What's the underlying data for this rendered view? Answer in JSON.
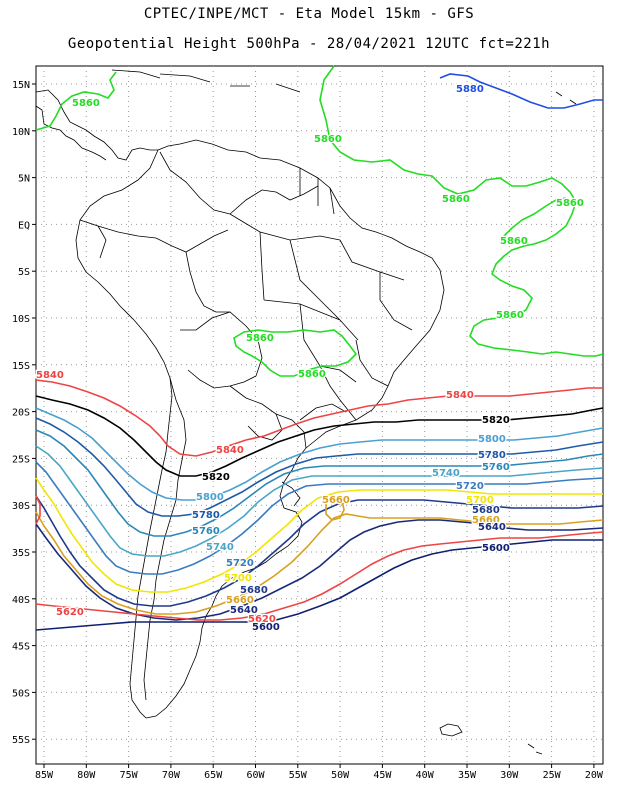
{
  "header": {
    "line1": "CPTEC/INPE/MCT -  Eta Model 15km - GFS",
    "line2": "Geopotential Height 500hPa - 28/04/2021 12UTC fct=221h"
  },
  "axes": {
    "lat_labels": [
      "15N",
      "10N",
      "5N",
      "EQ",
      "5S",
      "10S",
      "15S",
      "20S",
      "25S",
      "30S",
      "35S",
      "40S",
      "45S",
      "50S",
      "55S"
    ],
    "lon_labels": [
      "85W",
      "80W",
      "75W",
      "70W",
      "65W",
      "60W",
      "55W",
      "50W",
      "45W",
      "40W",
      "35W",
      "30W",
      "25W",
      "20W"
    ]
  },
  "colors": {
    "c5880": "#1f4fe0",
    "c5860": "#22dd22",
    "c5840": "#ee4444",
    "c5820": "#000000",
    "c5800": "#4aa0d0",
    "c5780": "#1e5aa8",
    "c5760": "#2a88b8",
    "c5740": "#4aa6c8",
    "c5720": "#3a7cc0",
    "c5700": "#f2e600",
    "c5680": "#1e3a8a",
    "c5660": "#d8a020",
    "c5640": "#1a2a7a",
    "c5620": "#ee4444",
    "c5600": "#102070"
  },
  "contour_labels": [
    {
      "id": "l5880",
      "text": "5880"
    },
    {
      "id": "l5860a",
      "text": "5860"
    },
    {
      "id": "l5860b",
      "text": "5860"
    },
    {
      "id": "l5860c",
      "text": "5860"
    },
    {
      "id": "l5860d",
      "text": "5860"
    },
    {
      "id": "l5860e",
      "text": "5860"
    },
    {
      "id": "l5860f",
      "text": "5860"
    },
    {
      "id": "l5860g",
      "text": "5860"
    },
    {
      "id": "l5860h",
      "text": "5860"
    },
    {
      "id": "l5840a",
      "text": "5840"
    },
    {
      "id": "l5840b",
      "text": "5840"
    },
    {
      "id": "l5840c",
      "text": "5840"
    },
    {
      "id": "l5820a",
      "text": "5820"
    },
    {
      "id": "l5820b",
      "text": "5820"
    },
    {
      "id": "l5800a",
      "text": "5800"
    },
    {
      "id": "l5800b",
      "text": "5800"
    },
    {
      "id": "l5780a",
      "text": "5780"
    },
    {
      "id": "l5780b",
      "text": "5780"
    },
    {
      "id": "l5760a",
      "text": "5760"
    },
    {
      "id": "l5760b",
      "text": "5760"
    },
    {
      "id": "l5740a",
      "text": "5740"
    },
    {
      "id": "l5740b",
      "text": "5740"
    },
    {
      "id": "l5720a",
      "text": "5720"
    },
    {
      "id": "l5720b",
      "text": "5720"
    },
    {
      "id": "l5700a",
      "text": "5700"
    },
    {
      "id": "l5700b",
      "text": "5700"
    },
    {
      "id": "l5680a",
      "text": "5680"
    },
    {
      "id": "l5680b",
      "text": "5680"
    },
    {
      "id": "l5660a",
      "text": "5660"
    },
    {
      "id": "l5660b",
      "text": "5660"
    },
    {
      "id": "l5660c",
      "text": "5660"
    },
    {
      "id": "l5640a",
      "text": "5640"
    },
    {
      "id": "l5640b",
      "text": "5640"
    },
    {
      "id": "l5620a",
      "text": "5620"
    },
    {
      "id": "l5620b",
      "text": "5620"
    },
    {
      "id": "l5600a",
      "text": "5600"
    },
    {
      "id": "l5600b",
      "text": "5600"
    }
  ]
}
